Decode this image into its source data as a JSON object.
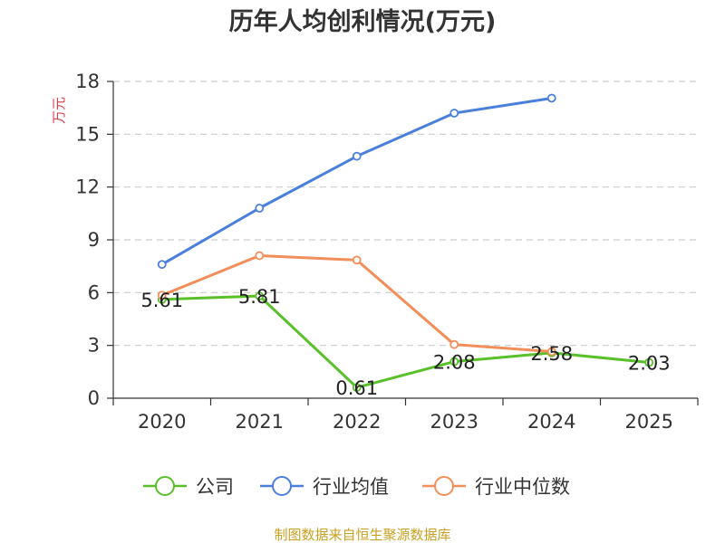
{
  "chart_data": {
    "type": "line",
    "title": "历年人均创利情况(万元)",
    "ylabel": "万元",
    "xlabel": "",
    "categories": [
      "2020",
      "2021",
      "2022",
      "2023",
      "2024",
      "2025"
    ],
    "ylim": [
      0,
      18
    ],
    "yticks": [
      0,
      3,
      6,
      9,
      12,
      15,
      18
    ],
    "grid": true,
    "legend": "bottom",
    "series": [
      {
        "name": "公司",
        "color": "#5ac02a",
        "values": [
          5.61,
          5.81,
          0.61,
          2.08,
          2.58,
          2.03
        ],
        "labels": [
          "5.61",
          "5.81",
          "0.61",
          "2.08",
          "2.58",
          "2.03"
        ]
      },
      {
        "name": "行业均值",
        "color": "#4a7fdc",
        "values": [
          7.6,
          10.8,
          13.75,
          16.2,
          17.05,
          null
        ]
      },
      {
        "name": "行业中位数",
        "color": "#f28e5a",
        "values": [
          5.85,
          8.1,
          7.85,
          3.05,
          2.65,
          null
        ]
      }
    ],
    "source": "制图数据来自恒生聚源数据库"
  }
}
